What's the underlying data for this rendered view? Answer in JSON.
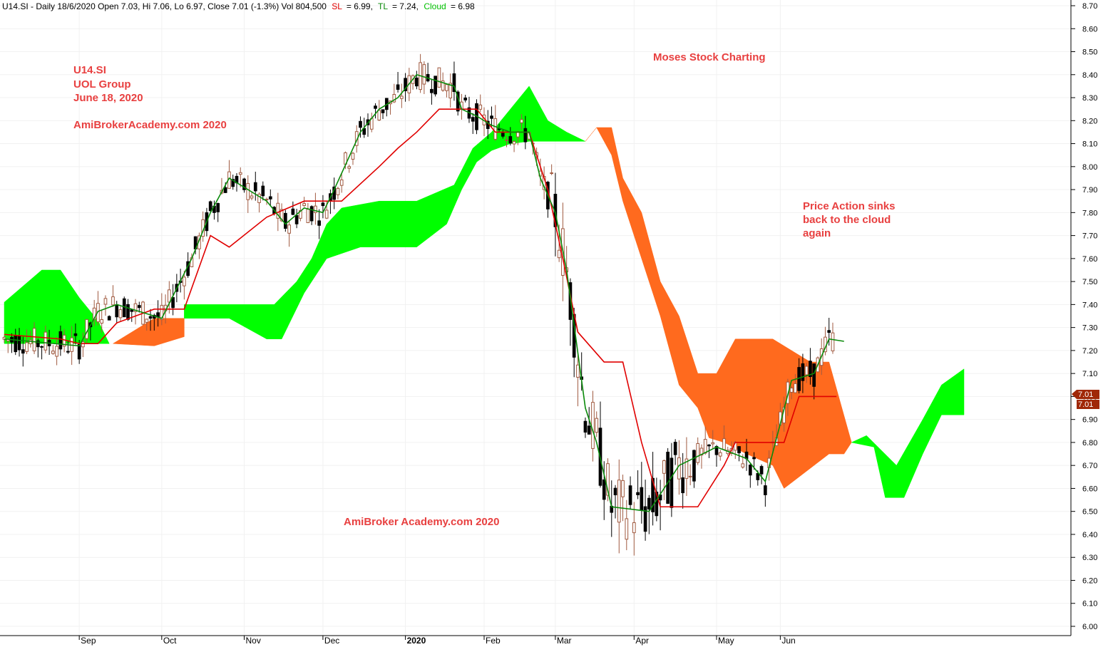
{
  "header": {
    "prefix": "U14.SI - Daily 18/6/2020 Open 7.03, Hi 7.06, Lo 6.97, Close 7.01 (-1.3%) Vol 804,500",
    "sl_label": "SL",
    "sl_value": "= 6.99,",
    "tl_label": "TL",
    "tl_value": "= 7.24,",
    "cloud_label": "Cloud",
    "cloud_value": "= 6.98"
  },
  "annotations": {
    "ticker": "U14.SI",
    "company": "UOL Group",
    "date": "June 18, 2020",
    "site_top": "AmiBrokerAcademy.com  2020",
    "moses": "Moses Stock Charting",
    "price_action_1": "Price Action sinks",
    "price_action_2": "back to the cloud",
    "price_action_3": "again",
    "site_bottom": "AmiBroker Academy.com  2020"
  },
  "colors": {
    "cloud_bull": "#00ff00",
    "cloud_bear": "#ff6a1e",
    "kijun": "#e00000",
    "tenkan": "#0a8a0a",
    "annotation": "#e84040",
    "up_candle": "#a05a40",
    "down_candle": "#000000",
    "price_box": "#a02808"
  },
  "price_labels": [
    "7.01",
    "7.01"
  ],
  "chart_data": {
    "type": "candlestick",
    "ylim": [
      6.0,
      8.7
    ],
    "y_ticks": [
      "6.00",
      "6.10",
      "6.20",
      "6.30",
      "6.40",
      "6.50",
      "6.60",
      "6.70",
      "6.80",
      "6.90",
      "7.00",
      "7.10",
      "7.20",
      "7.30",
      "7.40",
      "7.50",
      "7.60",
      "7.70",
      "7.80",
      "7.90",
      "8.00",
      "8.10",
      "8.20",
      "8.30",
      "8.40",
      "8.50",
      "8.60",
      "8.70"
    ],
    "x_ticks": [
      "Sep",
      "Oct",
      "Nov",
      "Dec",
      "2020",
      "Feb",
      "Mar",
      "Apr",
      "May",
      "Jun"
    ],
    "x_tick_days": [
      20,
      42,
      64,
      85,
      107,
      128,
      147,
      168,
      190,
      207
    ],
    "n_days": 252,
    "last_day": 221,
    "tenkan": [
      [
        0,
        7.25
      ],
      [
        20,
        7.22
      ],
      [
        25,
        7.37
      ],
      [
        30,
        7.4
      ],
      [
        40,
        7.35
      ],
      [
        42,
        7.34
      ],
      [
        50,
        7.6
      ],
      [
        55,
        7.8
      ],
      [
        60,
        7.95
      ],
      [
        70,
        7.85
      ],
      [
        75,
        7.75
      ],
      [
        80,
        7.82
      ],
      [
        85,
        7.8
      ],
      [
        88,
        7.9
      ],
      [
        95,
        8.15
      ],
      [
        100,
        8.25
      ],
      [
        105,
        8.3
      ],
      [
        110,
        8.4
      ],
      [
        120,
        8.35
      ],
      [
        122,
        8.25
      ],
      [
        126,
        8.22
      ],
      [
        130,
        8.18
      ],
      [
        135,
        8.15
      ],
      [
        140,
        8.15
      ],
      [
        143,
        7.95
      ],
      [
        147,
        7.8
      ],
      [
        150,
        7.55
      ],
      [
        155,
        6.95
      ],
      [
        158,
        6.8
      ],
      [
        162,
        6.52
      ],
      [
        172,
        6.5
      ],
      [
        180,
        6.7
      ],
      [
        190,
        6.78
      ],
      [
        198,
        6.73
      ],
      [
        203,
        6.63
      ],
      [
        210,
        7.07
      ],
      [
        216,
        7.1
      ],
      [
        220,
        7.25
      ],
      [
        224,
        7.24
      ]
    ],
    "kijun": [
      [
        0,
        7.27
      ],
      [
        15,
        7.25
      ],
      [
        20,
        7.23
      ],
      [
        25,
        7.23
      ],
      [
        30,
        7.32
      ],
      [
        40,
        7.38
      ],
      [
        48,
        7.38
      ],
      [
        55,
        7.7
      ],
      [
        60,
        7.65
      ],
      [
        70,
        7.78
      ],
      [
        80,
        7.85
      ],
      [
        85,
        7.85
      ],
      [
        90,
        7.85
      ],
      [
        100,
        8.0
      ],
      [
        105,
        8.08
      ],
      [
        110,
        8.15
      ],
      [
        116,
        8.25
      ],
      [
        120,
        8.25
      ],
      [
        124,
        8.25
      ],
      [
        126,
        8.25
      ],
      [
        131,
        8.15
      ],
      [
        137,
        8.15
      ],
      [
        140,
        8.15
      ],
      [
        145,
        7.9
      ],
      [
        149,
        7.6
      ],
      [
        153,
        7.28
      ],
      [
        160,
        7.15
      ],
      [
        165,
        7.15
      ],
      [
        170,
        6.8
      ],
      [
        175,
        6.52
      ],
      [
        185,
        6.52
      ],
      [
        192,
        6.7
      ],
      [
        195,
        6.8
      ],
      [
        202,
        6.8
      ],
      [
        208,
        6.8
      ],
      [
        212,
        7.0
      ],
      [
        222,
        7.0
      ]
    ],
    "cloud": [
      {
        "state": "bull",
        "upper": [
          [
            0,
            7.41
          ],
          [
            10,
            7.55
          ],
          [
            15,
            7.55
          ],
          [
            20,
            7.43
          ],
          [
            25,
            7.33
          ],
          [
            28,
            7.23
          ]
        ],
        "lower": [
          [
            0,
            7.23
          ],
          [
            28,
            7.23
          ]
        ]
      },
      {
        "state": "bear",
        "upper": [
          [
            29,
            7.23
          ],
          [
            40,
            7.34
          ],
          [
            48,
            7.34
          ]
        ],
        "lower": [
          [
            29,
            7.23
          ],
          [
            40,
            7.22
          ],
          [
            48,
            7.26
          ]
        ]
      },
      {
        "state": "bull",
        "upper": [
          [
            48,
            7.4
          ],
          [
            60,
            7.4
          ],
          [
            72,
            7.4
          ],
          [
            78,
            7.5
          ],
          [
            82,
            7.6
          ],
          [
            86,
            7.75
          ],
          [
            90,
            7.82
          ],
          [
            100,
            7.85
          ],
          [
            110,
            7.85
          ],
          [
            120,
            7.92
          ],
          [
            125,
            8.08
          ],
          [
            130,
            8.15
          ],
          [
            135,
            8.25
          ],
          [
            140,
            8.35
          ],
          [
            145,
            8.2
          ],
          [
            150,
            8.15
          ],
          [
            155,
            8.11
          ]
        ],
        "lower": [
          [
            48,
            7.34
          ],
          [
            60,
            7.34
          ],
          [
            70,
            7.25
          ],
          [
            74,
            7.25
          ],
          [
            80,
            7.45
          ],
          [
            86,
            7.6
          ],
          [
            95,
            7.65
          ],
          [
            110,
            7.65
          ],
          [
            118,
            7.75
          ],
          [
            122,
            7.9
          ],
          [
            126,
            8.02
          ],
          [
            130,
            8.07
          ],
          [
            135,
            8.1
          ],
          [
            140,
            8.11
          ],
          [
            155,
            8.11
          ]
        ]
      },
      {
        "state": "bear",
        "upper": [
          [
            155,
            8.11
          ],
          [
            158,
            8.17
          ],
          [
            162,
            8.17
          ],
          [
            165,
            7.95
          ],
          [
            170,
            7.8
          ],
          [
            175,
            7.5
          ],
          [
            180,
            7.35
          ],
          [
            185,
            7.1
          ],
          [
            190,
            7.1
          ],
          [
            195,
            7.25
          ],
          [
            205,
            7.25
          ],
          [
            215,
            7.15
          ],
          [
            220,
            7.15
          ],
          [
            226,
            6.8
          ]
        ],
        "lower": [
          [
            155,
            8.11
          ],
          [
            158,
            8.17
          ],
          [
            162,
            8.05
          ],
          [
            165,
            7.85
          ],
          [
            170,
            7.6
          ],
          [
            175,
            7.35
          ],
          [
            180,
            7.05
          ],
          [
            185,
            6.95
          ],
          [
            188,
            6.82
          ],
          [
            192,
            6.8
          ],
          [
            198,
            6.75
          ],
          [
            205,
            6.7
          ],
          [
            208,
            6.6
          ],
          [
            212,
            6.65
          ],
          [
            220,
            6.75
          ],
          [
            224,
            6.75
          ],
          [
            226,
            6.8
          ]
        ]
      },
      {
        "state": "bull",
        "upper": [
          [
            226,
            6.8
          ],
          [
            230,
            6.83
          ],
          [
            238,
            6.7
          ],
          [
            245,
            6.9
          ],
          [
            250,
            7.05
          ],
          [
            256,
            7.12
          ]
        ],
        "lower": [
          [
            226,
            6.8
          ],
          [
            232,
            6.78
          ],
          [
            235,
            6.56
          ],
          [
            240,
            6.56
          ],
          [
            245,
            6.75
          ],
          [
            250,
            6.92
          ],
          [
            256,
            6.92
          ]
        ]
      }
    ]
  }
}
